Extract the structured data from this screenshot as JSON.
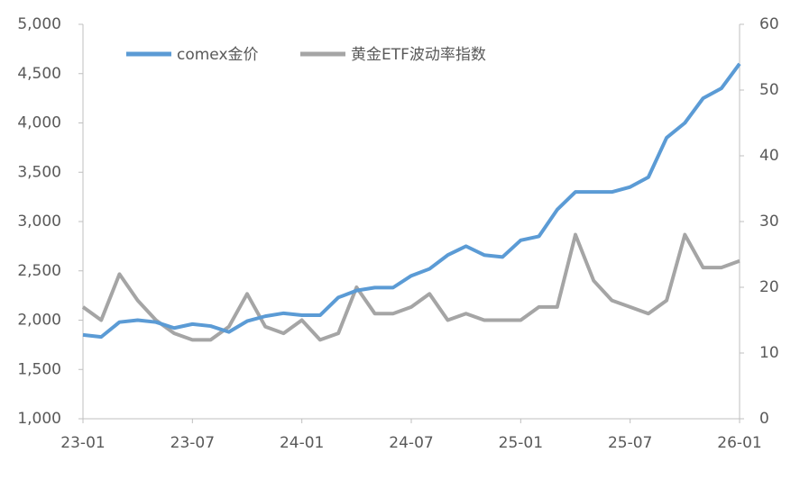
{
  "chart_data": {
    "type": "line",
    "categories": [
      "23-01",
      null,
      null,
      null,
      null,
      null,
      "23-07",
      null,
      null,
      null,
      null,
      null,
      "24-01",
      null,
      null,
      null,
      null,
      null,
      "24-07",
      null,
      null,
      null,
      null,
      null,
      "25-01",
      null,
      null,
      null,
      null,
      null,
      "25-07",
      null,
      null,
      null,
      null,
      null,
      "26-01"
    ],
    "series": [
      {
        "name": "comex金价",
        "color": "#5b9bd5",
        "axis": "y",
        "values": [
          1850,
          1830,
          1980,
          2000,
          1980,
          1920,
          1960,
          1940,
          1880,
          1990,
          2040,
          2070,
          2050,
          2050,
          2230,
          2300,
          2330,
          2330,
          2450,
          2520,
          2660,
          2750,
          2660,
          2640,
          2810,
          2850,
          3120,
          3300,
          3300,
          3300,
          3350,
          3450,
          3850,
          4000,
          4250,
          4350,
          4600
        ]
      },
      {
        "name": "黄金ETF波动率指数",
        "color": "#a5a5a5",
        "axis": "y2",
        "values": [
          17,
          15,
          22,
          18,
          15,
          13,
          12,
          12,
          14,
          19,
          14,
          13,
          15,
          12,
          13,
          20,
          16,
          16,
          17,
          19,
          15,
          16,
          15,
          15,
          15,
          17,
          17,
          28,
          21,
          18,
          17,
          16,
          18,
          28,
          23,
          23,
          24
        ]
      }
    ],
    "ylim": [
      1000,
      5000
    ],
    "yticks": [
      {
        "value": 1000,
        "label": "1,000"
      },
      {
        "value": 1500,
        "label": "1,500"
      },
      {
        "value": 2000,
        "label": "2,000"
      },
      {
        "value": 2500,
        "label": "2,500"
      },
      {
        "value": 3000,
        "label": "3,000"
      },
      {
        "value": 3500,
        "label": "3,500"
      },
      {
        "value": 4000,
        "label": "4,000"
      },
      {
        "value": 4500,
        "label": "4,500"
      },
      {
        "value": 5000,
        "label": "5,000"
      }
    ],
    "y2lim": [
      0,
      60
    ],
    "y2ticks": [
      0,
      10,
      20,
      30,
      40,
      50,
      60
    ],
    "legend": "top-left"
  }
}
